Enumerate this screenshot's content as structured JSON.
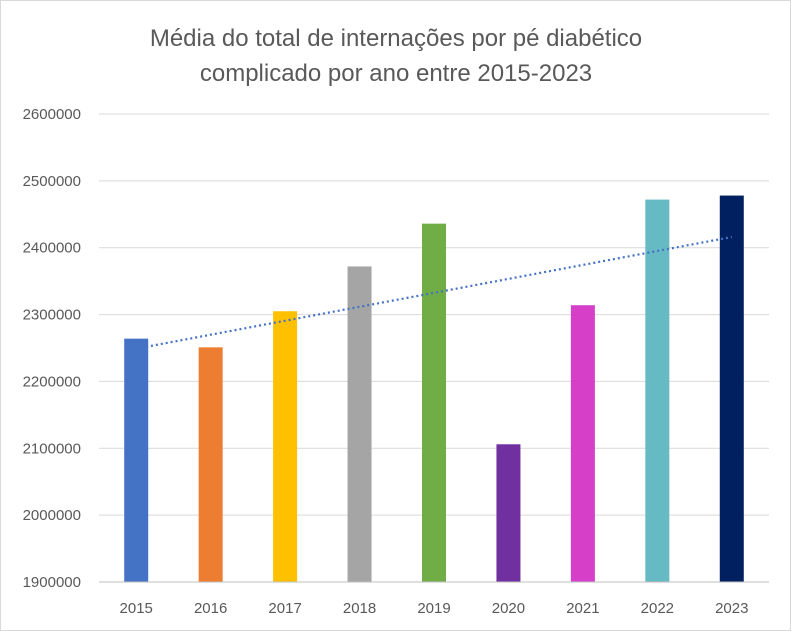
{
  "chart_data": {
    "type": "bar",
    "title_lines": [
      "Média do total de internações por pé diabético",
      "complicado por ano entre 2015-2023"
    ],
    "xlabel": "",
    "ylabel": "",
    "categories": [
      "2015",
      "2016",
      "2017",
      "2018",
      "2019",
      "2020",
      "2021",
      "2022",
      "2023"
    ],
    "values": [
      2264000,
      2251000,
      2305000,
      2372000,
      2436000,
      2106000,
      2314000,
      2472000,
      2478000
    ],
    "colors": [
      "#4472c4",
      "#ed7d31",
      "#ffc000",
      "#a5a5a5",
      "#70ad47",
      "#7030a0",
      "#d63fc8",
      "#65bac3",
      "#002060"
    ],
    "ylim": [
      1900000,
      2600000
    ],
    "yticks": [
      "1900000",
      "2000000",
      "2100000",
      "2200000",
      "2300000",
      "2400000",
      "2500000",
      "2600000"
    ],
    "grid": true,
    "legend": "none",
    "trendline": {
      "type": "linear",
      "color": "#4472c4",
      "style": "dotted",
      "start_value": 2249000,
      "end_value": 2416000
    }
  }
}
